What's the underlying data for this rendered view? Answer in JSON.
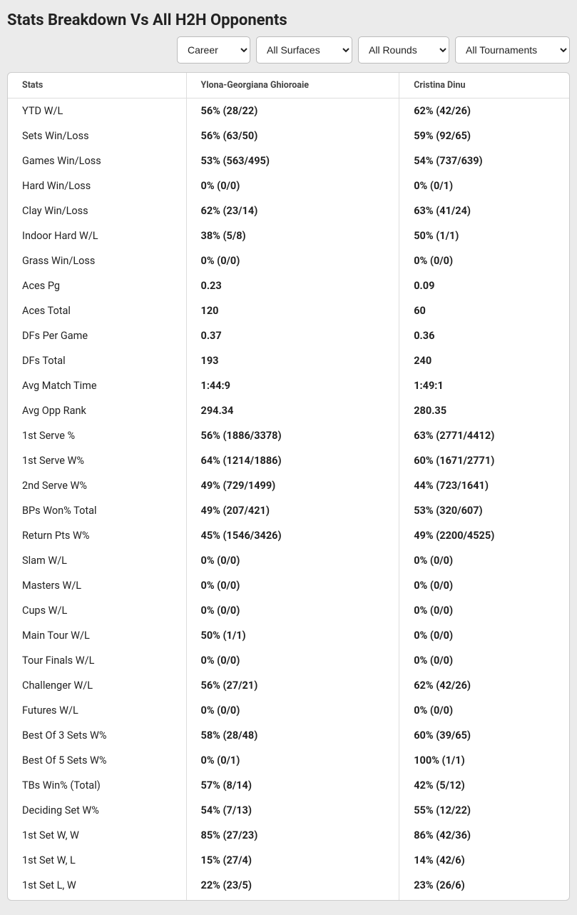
{
  "title": "Stats Breakdown Vs All H2H Opponents",
  "filters": {
    "period": {
      "selected": "Career",
      "options": [
        "Career"
      ]
    },
    "surface": {
      "selected": "All Surfaces",
      "options": [
        "All Surfaces"
      ]
    },
    "round": {
      "selected": "All Rounds",
      "options": [
        "All Rounds"
      ]
    },
    "tourney": {
      "selected": "All Tournaments",
      "options": [
        "All Tournaments"
      ]
    }
  },
  "columns": [
    "Stats",
    "Ylona-Georgiana Ghioroaie",
    "Cristina Dinu"
  ],
  "rows": [
    {
      "stat": "YTD W/L",
      "p1": "56% (28/22)",
      "p2": "62% (42/26)"
    },
    {
      "stat": "Sets Win/Loss",
      "p1": "56% (63/50)",
      "p2": "59% (92/65)"
    },
    {
      "stat": "Games Win/Loss",
      "p1": "53% (563/495)",
      "p2": "54% (737/639)"
    },
    {
      "stat": "Hard Win/Loss",
      "p1": "0% (0/0)",
      "p2": "0% (0/1)"
    },
    {
      "stat": "Clay Win/Loss",
      "p1": "62% (23/14)",
      "p2": "63% (41/24)"
    },
    {
      "stat": "Indoor Hard W/L",
      "p1": "38% (5/8)",
      "p2": "50% (1/1)"
    },
    {
      "stat": "Grass Win/Loss",
      "p1": "0% (0/0)",
      "p2": "0% (0/0)"
    },
    {
      "stat": "Aces Pg",
      "p1": "0.23",
      "p2": "0.09"
    },
    {
      "stat": "Aces Total",
      "p1": "120",
      "p2": "60"
    },
    {
      "stat": "DFs Per Game",
      "p1": "0.37",
      "p2": "0.36"
    },
    {
      "stat": "DFs Total",
      "p1": "193",
      "p2": "240"
    },
    {
      "stat": "Avg Match Time",
      "p1": "1:44:9",
      "p2": "1:49:1"
    },
    {
      "stat": "Avg Opp Rank",
      "p1": "294.34",
      "p2": "280.35"
    },
    {
      "stat": "1st Serve %",
      "p1": "56% (1886/3378)",
      "p2": "63% (2771/4412)"
    },
    {
      "stat": "1st Serve W%",
      "p1": "64% (1214/1886)",
      "p2": "60% (1671/2771)"
    },
    {
      "stat": "2nd Serve W%",
      "p1": "49% (729/1499)",
      "p2": "44% (723/1641)"
    },
    {
      "stat": "BPs Won% Total",
      "p1": "49% (207/421)",
      "p2": "53% (320/607)"
    },
    {
      "stat": "Return Pts W%",
      "p1": "45% (1546/3426)",
      "p2": "49% (2200/4525)"
    },
    {
      "stat": "Slam W/L",
      "p1": "0% (0/0)",
      "p2": "0% (0/0)"
    },
    {
      "stat": "Masters W/L",
      "p1": "0% (0/0)",
      "p2": "0% (0/0)"
    },
    {
      "stat": "Cups W/L",
      "p1": "0% (0/0)",
      "p2": "0% (0/0)"
    },
    {
      "stat": "Main Tour W/L",
      "p1": "50% (1/1)",
      "p2": "0% (0/0)"
    },
    {
      "stat": "Tour Finals W/L",
      "p1": "0% (0/0)",
      "p2": "0% (0/0)"
    },
    {
      "stat": "Challenger W/L",
      "p1": "56% (27/21)",
      "p2": "62% (42/26)"
    },
    {
      "stat": "Futures W/L",
      "p1": "0% (0/0)",
      "p2": "0% (0/0)"
    },
    {
      "stat": "Best Of 3 Sets W%",
      "p1": "58% (28/48)",
      "p2": "60% (39/65)"
    },
    {
      "stat": "Best Of 5 Sets W%",
      "p1": "0% (0/1)",
      "p2": "100% (1/1)"
    },
    {
      "stat": "TBs Win% (Total)",
      "p1": "57% (8/14)",
      "p2": "42% (5/12)"
    },
    {
      "stat": "Deciding Set W%",
      "p1": "54% (7/13)",
      "p2": "55% (12/22)"
    },
    {
      "stat": "1st Set W, W",
      "p1": "85% (27/23)",
      "p2": "86% (42/36)"
    },
    {
      "stat": "1st Set W, L",
      "p1": "15% (27/4)",
      "p2": "14% (42/6)"
    },
    {
      "stat": "1st Set L, W",
      "p1": "22% (23/5)",
      "p2": "23% (26/6)"
    }
  ]
}
